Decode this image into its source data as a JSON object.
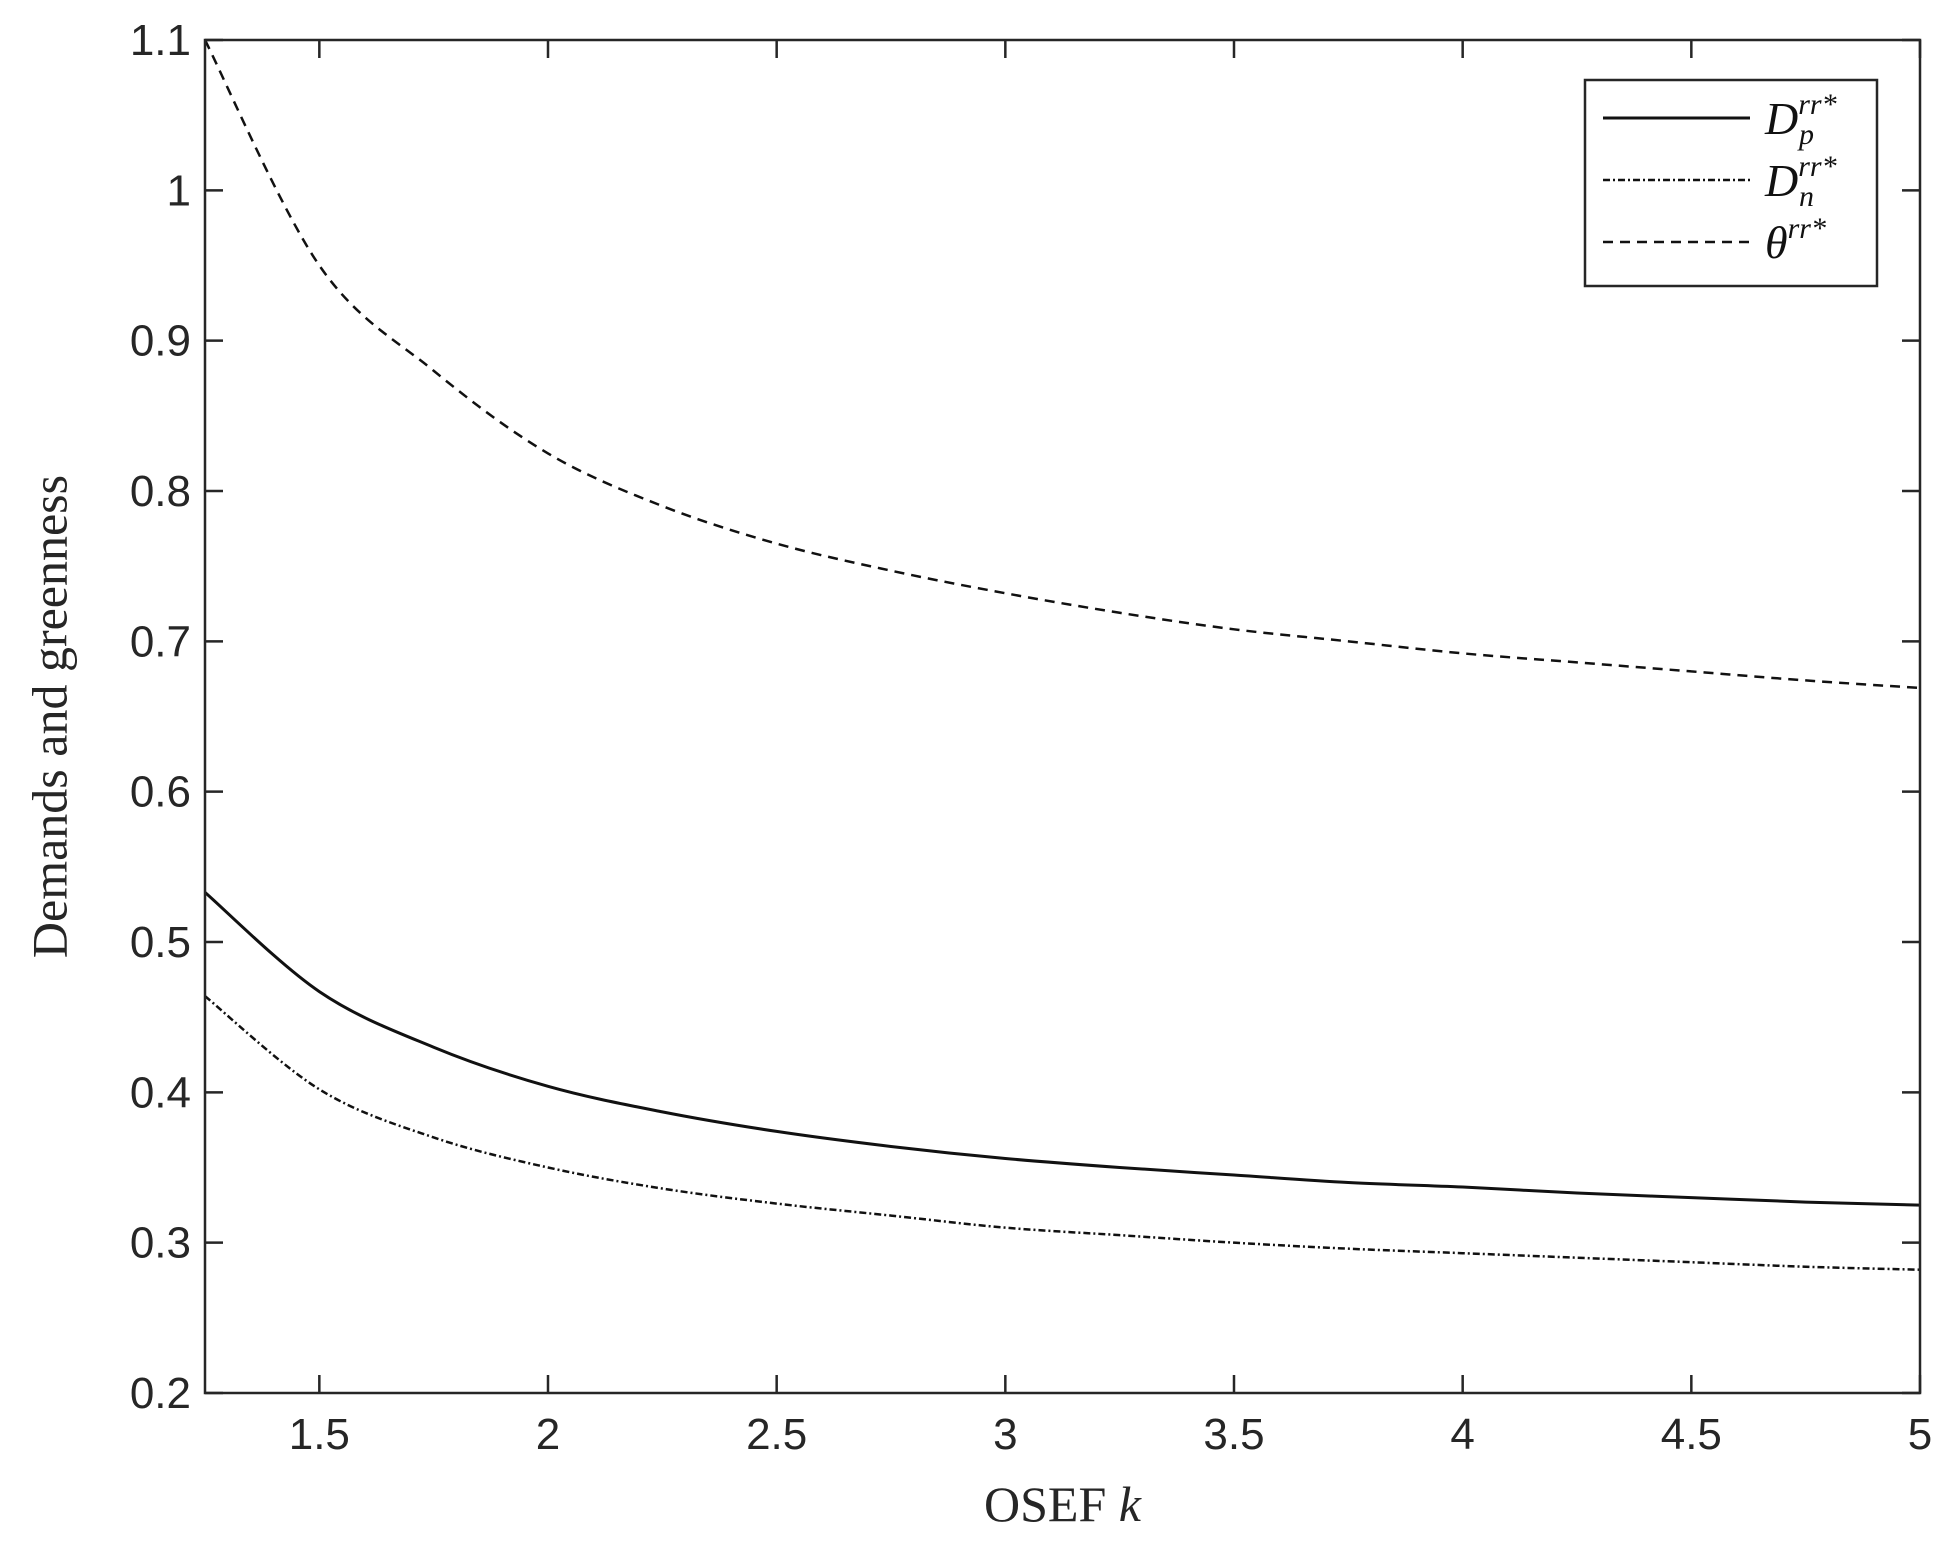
{
  "chart_data": {
    "type": "line",
    "xlabel": "OSEF k",
    "ylabel": "Demands and greenness",
    "xlim": [
      1.25,
      5
    ],
    "ylim": [
      0.2,
      1.1
    ],
    "xticks": [
      "1.5",
      "2",
      "2.5",
      "3",
      "3.5",
      "4",
      "4.5",
      "5"
    ],
    "yticks": [
      "0.2",
      "0.3",
      "0.4",
      "0.5",
      "0.6",
      "0.7",
      "0.8",
      "0.9",
      "1",
      "1.1"
    ],
    "legend_position": "top-right",
    "grid": false,
    "x": [
      1.25,
      1.5,
      1.75,
      2,
      2.25,
      2.5,
      2.75,
      3,
      3.25,
      3.5,
      3.75,
      4,
      4.25,
      4.5,
      4.75,
      5
    ],
    "series": [
      {
        "name": "D_p^{rr*}",
        "legend_base": "D",
        "legend_sub": "p",
        "legend_sup": "rr*",
        "style": "solid",
        "values": [
          0.533,
          0.467,
          0.43,
          0.404,
          0.387,
          0.374,
          0.364,
          0.356,
          0.35,
          0.345,
          0.34,
          0.337,
          0.333,
          0.33,
          0.327,
          0.325
        ]
      },
      {
        "name": "D_n^{rr*}",
        "legend_base": "D",
        "legend_sub": "n",
        "legend_sup": "rr*",
        "style": "dashdot",
        "values": [
          0.464,
          0.402,
          0.37,
          0.35,
          0.336,
          0.326,
          0.318,
          0.31,
          0.305,
          0.3,
          0.296,
          0.293,
          0.29,
          0.287,
          0.284,
          0.282
        ]
      },
      {
        "name": "θ^{rr*}",
        "legend_base": "θ",
        "legend_sub": "",
        "legend_sup": "rr*",
        "style": "dashed",
        "values": [
          1.1,
          0.95,
          0.88,
          0.825,
          0.79,
          0.765,
          0.747,
          0.732,
          0.719,
          0.708,
          0.7,
          0.692,
          0.686,
          0.68,
          0.674,
          0.669
        ]
      }
    ]
  },
  "colors": {
    "axes": "#262626",
    "line": "#111111",
    "background": "#ffffff"
  }
}
